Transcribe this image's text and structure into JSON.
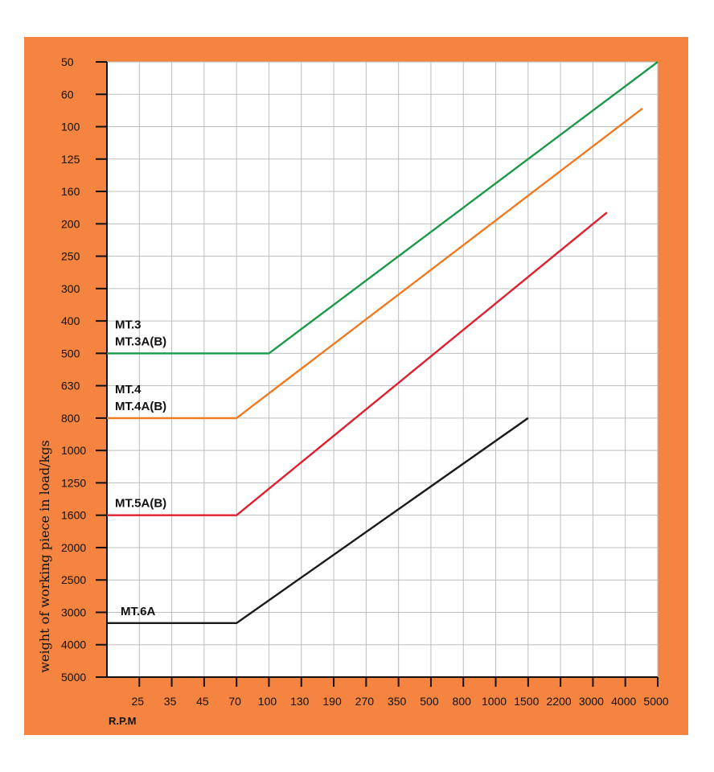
{
  "chart_data": {
    "type": "line",
    "title": "",
    "xlabel": "R.P.M",
    "ylabel": "weight of working piece in load/kgs",
    "x_ticks": [
      "25",
      "35",
      "45",
      "70",
      "100",
      "130",
      "190",
      "270",
      "350",
      "500",
      "800",
      "1000",
      "1500",
      "2200",
      "3000",
      "4000",
      "5000"
    ],
    "y_ticks": [
      "50",
      "60",
      "100",
      "125",
      "160",
      "200",
      "250",
      "300",
      "400",
      "500",
      "630",
      "800",
      "1000",
      "1250",
      "1600",
      "2000",
      "2500",
      "3000",
      "4000",
      "5000"
    ],
    "grid": true,
    "series": [
      {
        "name": "MT.3\nMT.3A(B)",
        "label_lines": [
          "MT.3",
          "MT.3A(B)"
        ],
        "color": "#1a9a4a",
        "points": [
          [
            0,
            500
          ],
          [
            100,
            500
          ],
          [
            5000,
            50
          ]
        ]
      },
      {
        "name": "MT.4\nMT.4A(B)",
        "label_lines": [
          "MT.4",
          "MT.4A(B)"
        ],
        "color": "#f07a20",
        "points": [
          [
            0,
            800
          ],
          [
            70,
            800
          ],
          [
            4500,
            75
          ]
        ]
      },
      {
        "name": "MT.5A(B)",
        "label_lines": [
          "MT.5A(B)"
        ],
        "color": "#e02030",
        "points": [
          [
            0,
            1600
          ],
          [
            70,
            1600
          ],
          [
            3400,
            185
          ]
        ]
      },
      {
        "name": "MT.6A",
        "label_lines": [
          "MT.6A"
        ],
        "color": "#1a1a1a",
        "points": [
          [
            0,
            3300
          ],
          [
            70,
            3300
          ],
          [
            1500,
            800
          ]
        ]
      }
    ]
  },
  "colors": {
    "frame": "#f4843f",
    "plot_bg": "#ffffff",
    "grid": "#bdbdbd",
    "axis": "#111111"
  }
}
